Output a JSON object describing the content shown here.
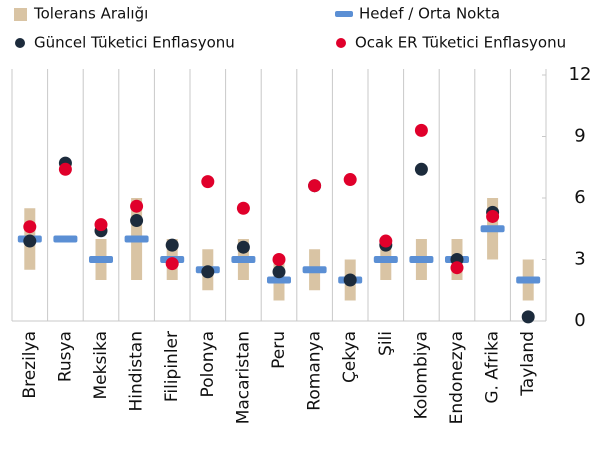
{
  "chart_data": {
    "type": "range-dot",
    "categories": [
      "Brezilya",
      "Rusya",
      "Meksika",
      "Hindistan",
      "Filipinler",
      "Polonya",
      "Macaristan",
      "Peru",
      "Romanya",
      "Çekya",
      "Şili",
      "Kolombiya",
      "Endonezya",
      "G. Afrika",
      "Tayland"
    ],
    "series": [
      {
        "name": "Tolerans Aralığı",
        "color": "#d9c4a4",
        "kind": "range",
        "values": [
          [
            2.5,
            5.5
          ],
          null,
          [
            2,
            4
          ],
          [
            2,
            6
          ],
          [
            2,
            4
          ],
          [
            1.5,
            3.5
          ],
          [
            2,
            4
          ],
          [
            1,
            3
          ],
          [
            1.5,
            3.5
          ],
          [
            1,
            3
          ],
          [
            2,
            4
          ],
          [
            2,
            4
          ],
          [
            2,
            4
          ],
          [
            3,
            6
          ],
          [
            1,
            3
          ]
        ]
      },
      {
        "name": "Hedef / Orta Nokta",
        "color": "#5b8fd4",
        "kind": "dash",
        "values": [
          4,
          4,
          3,
          4,
          3,
          2.5,
          3,
          2,
          2.5,
          2,
          3,
          3,
          3,
          4.5,
          2
        ]
      },
      {
        "name": "Güncel Tüketici Enflasyonu",
        "color": "#1c2b3c",
        "kind": "dot",
        "values": [
          3.9,
          7.7,
          4.4,
          4.9,
          3.7,
          2.4,
          3.6,
          2.4,
          6.6,
          2.0,
          3.7,
          7.4,
          3.0,
          5.3,
          0.2
        ]
      },
      {
        "name": "Ocak ER Tüketici Enflasyonu",
        "color": "#e0002b",
        "kind": "dot",
        "values": [
          4.6,
          7.4,
          4.7,
          5.6,
          2.8,
          6.8,
          5.5,
          3.0,
          6.6,
          6.9,
          3.9,
          9.3,
          2.6,
          5.1,
          null
        ]
      }
    ],
    "ylim": [
      0,
      12
    ],
    "yticks": [
      0,
      3,
      6,
      9,
      12
    ],
    "grid": true
  }
}
